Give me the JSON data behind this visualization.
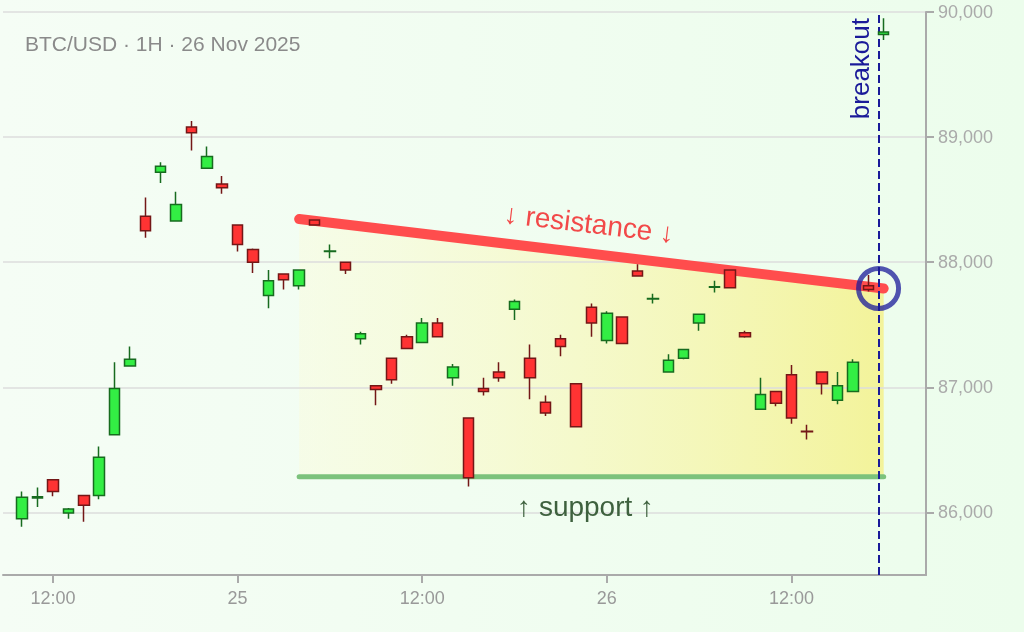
{
  "chart_data": {
    "type": "candlestick",
    "title": "BTC/USD · 1H · 26 Nov 2025",
    "xlim": [
      "2025-11-24T08:45",
      "2025-11-26T20:45"
    ],
    "xticks": [
      {
        "value": "2025-11-24T12:00",
        "label": "12:00"
      },
      {
        "value": "2025-11-25T00:00",
        "label": "25"
      },
      {
        "value": "2025-11-25T12:00",
        "label": "12:00"
      },
      {
        "value": "2025-11-26T00:00",
        "label": "26"
      },
      {
        "value": "2025-11-26T12:00",
        "label": "12:00"
      }
    ],
    "ylim": [
      85500,
      90000
    ],
    "yticks": [
      {
        "value": 86000,
        "label": "86,000"
      },
      {
        "value": 87000,
        "label": "87,000"
      },
      {
        "value": 88000,
        "label": "88,000"
      },
      {
        "value": 89000,
        "label": "89,000"
      },
      {
        "value": 90000,
        "label": "90,000"
      }
    ],
    "grid": "y",
    "series": [
      {
        "x": [
          "2025-11-24T10:00",
          "2025-11-24T11:00",
          "2025-11-24T12:00",
          "2025-11-24T13:00",
          "2025-11-24T14:00",
          "2025-11-24T15:00",
          "2025-11-24T16:00",
          "2025-11-24T17:00",
          "2025-11-24T18:00",
          "2025-11-24T19:00",
          "2025-11-24T20:00",
          "2025-11-24T21:00",
          "2025-11-24T22:00",
          "2025-11-24T23:00",
          "2025-11-25T00:00",
          "2025-11-25T01:00",
          "2025-11-25T02:00",
          "2025-11-25T03:00",
          "2025-11-25T04:00",
          "2025-11-25T05:00",
          "2025-11-25T06:00",
          "2025-11-25T07:00",
          "2025-11-25T08:00",
          "2025-11-25T09:00",
          "2025-11-25T10:00",
          "2025-11-25T11:00",
          "2025-11-25T12:00",
          "2025-11-25T13:00",
          "2025-11-25T14:00",
          "2025-11-25T15:00",
          "2025-11-25T16:00",
          "2025-11-25T17:00",
          "2025-11-25T18:00",
          "2025-11-25T19:00",
          "2025-11-25T20:00",
          "2025-11-25T21:00",
          "2025-11-25T22:00",
          "2025-11-25T23:00",
          "2025-11-26T00:00",
          "2025-11-26T01:00",
          "2025-11-26T02:00",
          "2025-11-26T03:00",
          "2025-11-26T04:00",
          "2025-11-26T05:00",
          "2025-11-26T06:00",
          "2025-11-26T07:00",
          "2025-11-26T08:00",
          "2025-11-26T09:00",
          "2025-11-26T10:00",
          "2025-11-26T11:00",
          "2025-11-26T12:00",
          "2025-11-26T13:00",
          "2025-11-26T14:00",
          "2025-11-26T15:00",
          "2025-11-26T16:00",
          "2025-11-26T17:00",
          "2025-11-26T18:00"
        ],
        "ohlc": [
          [
            85949,
            86168,
            85886,
            86121
          ],
          [
            86115,
            86199,
            86043,
            86125
          ],
          [
            86262,
            86262,
            86129,
            86168
          ],
          [
            85996,
            86035,
            85949,
            86027
          ],
          [
            86136,
            86136,
            85925,
            86058
          ],
          [
            86136,
            86528,
            86105,
            86442
          ],
          [
            86622,
            87201,
            86622,
            86990
          ],
          [
            87170,
            87327,
            87170,
            87225
          ],
          [
            88368,
            88517,
            88196,
            88251
          ],
          [
            88720,
            88799,
            88634,
            88767
          ],
          [
            88329,
            88564,
            88329,
            88462
          ],
          [
            89081,
            89128,
            88893,
            89034
          ],
          [
            88752,
            88924,
            88752,
            88846
          ],
          [
            88626,
            88689,
            88548,
            88595
          ],
          [
            88298,
            88298,
            88086,
            88141
          ],
          [
            88102,
            88110,
            87914,
            88000
          ],
          [
            87734,
            87937,
            87632,
            87851
          ],
          [
            87906,
            87906,
            87781,
            87859
          ],
          [
            87812,
            87937,
            87781,
            87937
          ],
          [
            88337,
            88337,
            88298,
            88298
          ],
          [
            88086,
            88141,
            88031,
            88090
          ],
          [
            88000,
            88000,
            87906,
            87937
          ],
          [
            87389,
            87444,
            87342,
            87428
          ],
          [
            87013,
            87013,
            86857,
            86982
          ],
          [
            87233,
            87233,
            87029,
            87060
          ],
          [
            87405,
            87421,
            87311,
            87311
          ],
          [
            87358,
            87554,
            87358,
            87515
          ],
          [
            87515,
            87554,
            87405,
            87405
          ],
          [
            87076,
            87186,
            87013,
            87162
          ],
          [
            86755,
            86755,
            86207,
            86277
          ],
          [
            86990,
            87076,
            86935,
            86966
          ],
          [
            87123,
            87201,
            87045,
            87076
          ],
          [
            87624,
            87702,
            87538,
            87687
          ],
          [
            87233,
            87342,
            86904,
            87076
          ],
          [
            86880,
            86935,
            86771,
            86794
          ],
          [
            87389,
            87421,
            87248,
            87327
          ],
          [
            87029,
            87029,
            86685,
            86685
          ],
          [
            87640,
            87671,
            87405,
            87515
          ],
          [
            87374,
            87609,
            87350,
            87593
          ],
          [
            87562,
            87562,
            87350,
            87350
          ],
          [
            87930,
            87984,
            87890,
            87890
          ],
          [
            87706,
            87749,
            87671,
            87710
          ],
          [
            87123,
            87264,
            87123,
            87217
          ],
          [
            87233,
            87303,
            87225,
            87303
          ],
          [
            87515,
            87585,
            87452,
            87585
          ],
          [
            87800,
            87851,
            87757,
            87804
          ],
          [
            87937,
            87937,
            87796,
            87796
          ],
          [
            87436,
            87452,
            87397,
            87405
          ],
          [
            86825,
            87076,
            86825,
            86943
          ],
          [
            86966,
            86966,
            86849,
            86872
          ],
          [
            87100,
            87178,
            86708,
            86755
          ],
          [
            86648,
            86700,
            86583,
            86645
          ],
          [
            87123,
            87123,
            86943,
            87029
          ],
          [
            86896,
            87123,
            86865,
            87013
          ],
          [
            86966,
            87225,
            86966,
            87201
          ],
          [
            87812,
            87898,
            87765,
            87781
          ],
          [
            89820,
            89950,
            89777,
            89840
          ]
        ],
        "colors": [
          "#33ee44",
          "#33ee44",
          "#ff3333",
          "#33ee44",
          "#ff3333",
          "#33ee44",
          "#33ee44",
          "#33ee44",
          "#ff3333",
          "#33ee44",
          "#33ee44",
          "#ff3333",
          "#33ee44",
          "#ff3333",
          "#ff3333",
          "#ff3333",
          "#33ee44",
          "#ff3333",
          "#33ee44",
          "#ff3333",
          "#33ee44",
          "#ff3333",
          "#33ee44",
          "#ff3333",
          "#ff3333",
          "#ff3333",
          "#33ee44",
          "#ff3333",
          "#33ee44",
          "#ff3333",
          "#ff3333",
          "#ff3333",
          "#33ee44",
          "#ff3333",
          "#ff3333",
          "#ff3333",
          "#ff3333",
          "#ff3333",
          "#33ee44",
          "#ff3333",
          "#ff3333",
          "#33ee44",
          "#33ee44",
          "#33ee44",
          "#33ee44",
          "#33ee44",
          "#ff3333",
          "#ff3333",
          "#33ee44",
          "#ff3333",
          "#ff3333",
          "#ff3333",
          "#ff3333",
          "#33ee44",
          "#33ee44",
          "#ff3333",
          "#33ee44"
        ]
      },
      {
        "type": "line",
        "x": [
          "2025-11-25T04:00",
          "2025-11-26T18:00"
        ],
        "values": [
          88345,
          87790
        ],
        "color": "#ff4d4d"
      },
      {
        "type": "line",
        "x": [
          "2025-11-25T04:00",
          "2025-11-26T18:00"
        ],
        "values": [
          86285,
          86285
        ],
        "color": "#7cc27c"
      }
    ],
    "ref_lines": [
      {
        "axis": "x",
        "value": "2025-11-26T17:40",
        "label": "breakout",
        "color": "#1a1a99",
        "line_style": "dashed"
      }
    ],
    "annotations": [
      "↓ resistance ↓",
      "↑ support ↑"
    ]
  }
}
